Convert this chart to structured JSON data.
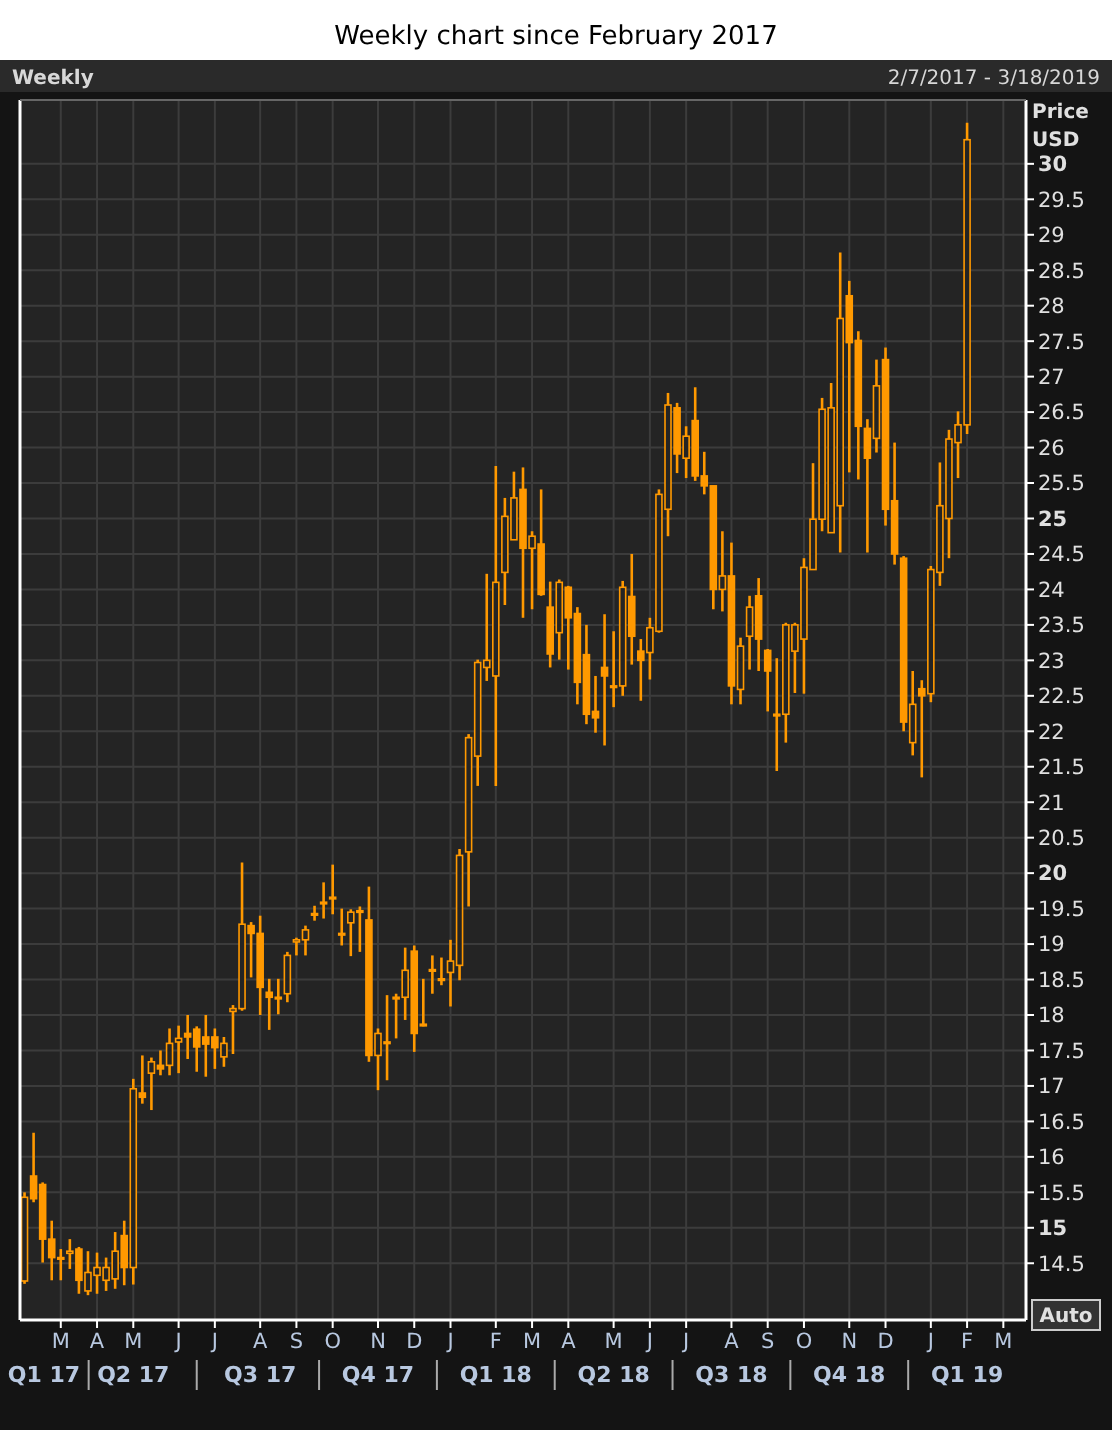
{
  "chart_data": {
    "type": "candlestick",
    "title": "Weekly chart since February 2017",
    "subtitle": "Weekly",
    "ylabel": "Price USD",
    "annotations": [
      "2/7/2017 - 3/18/2019",
      "Auto",
      "Q1 17",
      "Q2 17",
      "Q3 17",
      "Q4 17",
      "Q1 18",
      "Q2 18",
      "Q3 18",
      "Q4 18",
      "Q1 19"
    ],
    "categories": [
      null,
      null,
      null,
      null,
      "M",
      null,
      null,
      null,
      "A",
      null,
      null,
      null,
      "M",
      null,
      null,
      null,
      null,
      "J",
      null,
      null,
      null,
      "J",
      null,
      null,
      null,
      null,
      "A",
      null,
      null,
      null,
      "S",
      null,
      null,
      null,
      "O",
      null,
      null,
      null,
      null,
      "N",
      null,
      null,
      null,
      "D",
      null,
      null,
      null,
      "J",
      null,
      null,
      null,
      null,
      "F",
      null,
      null,
      null,
      "M",
      null,
      null,
      null,
      "A",
      null,
      null,
      null,
      null,
      "M",
      null,
      null,
      null,
      "J",
      null,
      null,
      null,
      "J",
      null,
      null,
      null,
      null,
      "A",
      null,
      null,
      null,
      "S",
      null,
      null,
      null,
      "O",
      null,
      null,
      null,
      null,
      "N",
      null,
      null,
      null,
      "D",
      null,
      null,
      null,
      null,
      "J",
      null,
      null,
      null,
      "F",
      null,
      null,
      null,
      "M",
      null,
      null
    ],
    "color": "#ff9900",
    "grid": true,
    "ylim": [
      13.7,
      30.9
    ],
    "yticks": [
      14.5,
      15,
      15.5,
      16,
      16.5,
      17,
      17.5,
      18,
      18.5,
      19,
      19.5,
      20,
      20.5,
      21,
      21.5,
      22,
      22.5,
      23,
      23.5,
      24,
      24.5,
      25,
      25.5,
      26,
      26.5,
      27,
      27.5,
      28,
      28.5,
      29,
      29.5,
      30
    ],
    "ohlc": [
      [
        14.25,
        15.5,
        14.21,
        15.43
      ],
      [
        15.73,
        16.34,
        15.36,
        15.41
      ],
      [
        15.61,
        15.64,
        14.51,
        14.84
      ],
      [
        14.84,
        15.1,
        14.26,
        14.58
      ],
      [
        14.58,
        14.7,
        14.26,
        14.58
      ],
      [
        14.64,
        14.84,
        14.42,
        14.67
      ],
      [
        14.7,
        14.73,
        14.07,
        14.26
      ],
      [
        14.11,
        14.67,
        14.05,
        14.37
      ],
      [
        14.33,
        14.65,
        14.07,
        14.44
      ],
      [
        14.26,
        14.58,
        14.11,
        14.44
      ],
      [
        14.28,
        14.94,
        14.14,
        14.67
      ],
      [
        14.89,
        15.1,
        14.19,
        14.44
      ],
      [
        14.44,
        17.1,
        14.2,
        16.96
      ],
      [
        16.9,
        17.43,
        16.75,
        16.84
      ],
      [
        17.18,
        17.4,
        16.66,
        17.34
      ],
      [
        17.29,
        17.5,
        17.15,
        17.24
      ],
      [
        17.29,
        17.81,
        17.15,
        17.6
      ],
      [
        17.62,
        17.85,
        17.18,
        17.67
      ],
      [
        17.74,
        18,
        17.38,
        17.69
      ],
      [
        17.8,
        17.84,
        17.2,
        17.55
      ],
      [
        17.69,
        18,
        17.13,
        17.59
      ],
      [
        17.69,
        17.81,
        17.24,
        17.54
      ],
      [
        17.41,
        17.69,
        17.27,
        17.6
      ],
      [
        18.05,
        18.14,
        17.45,
        18.09
      ],
      [
        18.09,
        20.15,
        18.06,
        19.28
      ],
      [
        19.26,
        19.31,
        18.53,
        19.15
      ],
      [
        19.15,
        19.4,
        18,
        18.39
      ],
      [
        18.32,
        18.51,
        17.79,
        18.25
      ],
      [
        18.25,
        18.51,
        18.01,
        18.25
      ],
      [
        18.3,
        18.89,
        18.18,
        18.84
      ],
      [
        19.03,
        19.09,
        18.84,
        19.06
      ],
      [
        19.06,
        19.26,
        18.84,
        19.2
      ],
      [
        19.43,
        19.54,
        19.33,
        19.43
      ],
      [
        19.59,
        19.87,
        19.36,
        19.59
      ],
      [
        19.64,
        20.12,
        19.42,
        19.66
      ],
      [
        19.15,
        19.5,
        18.98,
        19.15
      ],
      [
        19.3,
        19.49,
        18.83,
        19.45
      ],
      [
        19.45,
        19.53,
        18.89,
        19.47
      ],
      [
        19.34,
        19.81,
        17.34,
        17.43
      ],
      [
        17.43,
        17.81,
        16.94,
        17.74
      ],
      [
        17.62,
        18.28,
        17.08,
        17.62
      ],
      [
        18.25,
        18.3,
        17.67,
        18.25
      ],
      [
        18.25,
        18.95,
        17.93,
        18.63
      ],
      [
        18.9,
        18.98,
        17.48,
        17.74
      ],
      [
        17.87,
        18.51,
        17.84,
        17.85
      ],
      [
        18.64,
        18.84,
        18.3,
        18.64
      ],
      [
        18.51,
        18.81,
        18.42,
        18.51
      ],
      [
        18.6,
        19.06,
        18.12,
        18.76
      ],
      [
        18.7,
        20.34,
        18.49,
        20.25
      ],
      [
        20.3,
        21.96,
        19.53,
        21.91
      ],
      [
        21.65,
        23.01,
        21.23,
        22.97
      ],
      [
        22.9,
        24.22,
        22.71,
        23
      ],
      [
        22.78,
        25.74,
        21.23,
        24.1
      ],
      [
        24.24,
        25.29,
        23.78,
        25.03
      ],
      [
        24.7,
        25.66,
        24.7,
        25.29
      ],
      [
        25.41,
        25.72,
        23.6,
        24.58
      ],
      [
        24.58,
        24.82,
        23.72,
        24.75
      ],
      [
        24.64,
        25.41,
        23.91,
        23.93
      ],
      [
        23.75,
        24.11,
        22.9,
        23.09
      ],
      [
        23.39,
        24.14,
        23.01,
        24.1
      ],
      [
        24.03,
        24.05,
        22.87,
        23.6
      ],
      [
        23.66,
        23.75,
        22.38,
        22.69
      ],
      [
        23.08,
        23.5,
        22.1,
        22.24
      ],
      [
        22.28,
        22.78,
        21.98,
        22.19
      ],
      [
        22.9,
        23.65,
        21.8,
        22.78
      ],
      [
        22.64,
        23.41,
        22.34,
        22.64
      ],
      [
        22.64,
        24.12,
        22.5,
        24.03
      ],
      [
        23.9,
        24.5,
        22.94,
        23.34
      ],
      [
        23.13,
        23.3,
        22.43,
        23
      ],
      [
        23.11,
        23.6,
        22.73,
        23.46
      ],
      [
        23.41,
        25.41,
        23.39,
        25.34
      ],
      [
        25.13,
        26.77,
        24.75,
        26.6
      ],
      [
        26.56,
        26.63,
        25.64,
        25.91
      ],
      [
        25.85,
        26.3,
        25.57,
        26.16
      ],
      [
        26.38,
        26.85,
        25.53,
        25.6
      ],
      [
        25.6,
        25.94,
        25.34,
        25.46
      ],
      [
        25.46,
        25.46,
        23.72,
        24
      ],
      [
        24,
        24.82,
        23.69,
        24.19
      ],
      [
        24.19,
        24.66,
        22.38,
        22.64
      ],
      [
        22.59,
        23.32,
        22.38,
        23.2
      ],
      [
        23.34,
        23.91,
        22.87,
        23.75
      ],
      [
        23.91,
        24.16,
        22.85,
        23.3
      ],
      [
        23.14,
        23.16,
        22.28,
        22.85
      ],
      [
        22.24,
        23.03,
        21.44,
        22.24
      ],
      [
        22.24,
        23.53,
        21.84,
        23.5
      ],
      [
        23.13,
        23.53,
        22.54,
        23.5
      ],
      [
        23.3,
        24.44,
        22.53,
        24.31
      ],
      [
        24.28,
        25.78,
        24.28,
        24.99
      ],
      [
        24.99,
        26.7,
        24.82,
        26.54
      ],
      [
        24.8,
        26.91,
        24.8,
        26.56
      ],
      [
        25.18,
        28.75,
        24.52,
        27.82
      ],
      [
        28.14,
        28.35,
        25.65,
        27.48
      ],
      [
        27.51,
        27.64,
        25.55,
        26.3
      ],
      [
        26.27,
        26.4,
        24.52,
        25.85
      ],
      [
        26.13,
        27.24,
        25.93,
        26.87
      ],
      [
        27.24,
        27.41,
        24.9,
        25.13
      ],
      [
        25.25,
        26.07,
        24.35,
        24.5
      ],
      [
        24.44,
        24.47,
        22,
        22.13
      ],
      [
        21.84,
        22.85,
        21.66,
        22.38
      ],
      [
        22.6,
        22.72,
        21.35,
        22.5
      ],
      [
        22.53,
        24.33,
        22.41,
        24.28
      ],
      [
        24.24,
        25.79,
        24.05,
        25.18
      ],
      [
        25,
        26.25,
        24.44,
        26.12
      ],
      [
        26.07,
        26.51,
        25.57,
        26.32
      ],
      [
        26.32,
        30.58,
        26.19,
        30.34
      ],
      null,
      null,
      null,
      null,
      null,
      null
    ]
  }
}
